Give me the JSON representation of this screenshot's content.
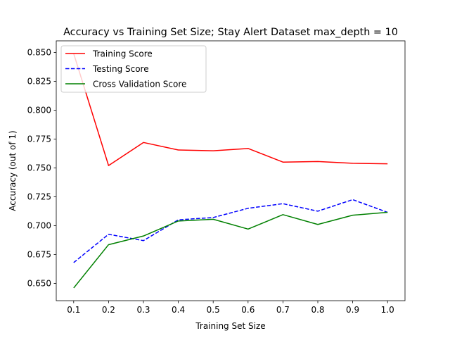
{
  "chart_data": {
    "type": "line",
    "title": "Accuracy vs Training Set Size; Stay Alert Dataset max_depth = 10",
    "xlabel": "Training Set Size",
    "ylabel": "Accuracy (out of 1)",
    "xlim": [
      0.05,
      1.05
    ],
    "ylim": [
      0.635,
      0.86
    ],
    "x": [
      0.1,
      0.2,
      0.3,
      0.4,
      0.5,
      0.6,
      0.7,
      0.8,
      0.9,
      1.0
    ],
    "xticks": [
      0.1,
      0.2,
      0.3,
      0.4,
      0.5,
      0.6,
      0.7,
      0.8,
      0.9,
      1.0
    ],
    "xtick_labels": [
      "0.1",
      "0.2",
      "0.3",
      "0.4",
      "0.5",
      "0.6",
      "0.7",
      "0.8",
      "0.9",
      "1.0"
    ],
    "yticks": [
      0.65,
      0.675,
      0.7,
      0.725,
      0.75,
      0.775,
      0.8,
      0.825,
      0.85
    ],
    "ytick_labels": [
      "0.650",
      "0.675",
      "0.700",
      "0.725",
      "0.750",
      "0.775",
      "0.800",
      "0.825",
      "0.850"
    ],
    "grid": false,
    "legend_position": "top-left",
    "series": [
      {
        "name": "Training Score",
        "color": "#ff0000",
        "dash": "solid",
        "values": [
          0.849,
          0.752,
          0.772,
          0.7655,
          0.7648,
          0.7668,
          0.755,
          0.7555,
          0.754,
          0.7535
        ]
      },
      {
        "name": "Testing Score",
        "color": "#0000ff",
        "dash": "dashed",
        "values": [
          0.668,
          0.6925,
          0.687,
          0.705,
          0.707,
          0.715,
          0.719,
          0.7125,
          0.7225,
          0.7115
        ]
      },
      {
        "name": "Cross Validation Score",
        "color": "#008000",
        "dash": "solid",
        "values": [
          0.646,
          0.6835,
          0.691,
          0.704,
          0.7055,
          0.697,
          0.7095,
          0.701,
          0.709,
          0.7115
        ]
      }
    ]
  }
}
